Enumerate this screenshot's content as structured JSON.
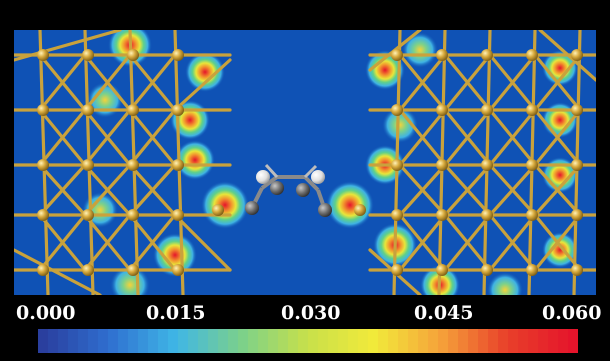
{
  "figure": {
    "colorbar": {
      "ticks": [
        "0.000",
        "0.015",
        "0.030",
        "0.045",
        "0.060"
      ],
      "range": [
        0.0,
        0.06
      ],
      "colors": [
        "#2a3f9e",
        "#2f6fd0",
        "#3fb6e6",
        "#7cd18a",
        "#c8e04a",
        "#f2ea3a",
        "#f5a23a",
        "#e8402a",
        "#e5142b"
      ]
    },
    "background_color": "#0f52b5",
    "metal_color": "#c9a23c",
    "molecule": {
      "carbon_color": "#6f6f6f",
      "hydrogen_color": "#e8e8e8"
    }
  }
}
